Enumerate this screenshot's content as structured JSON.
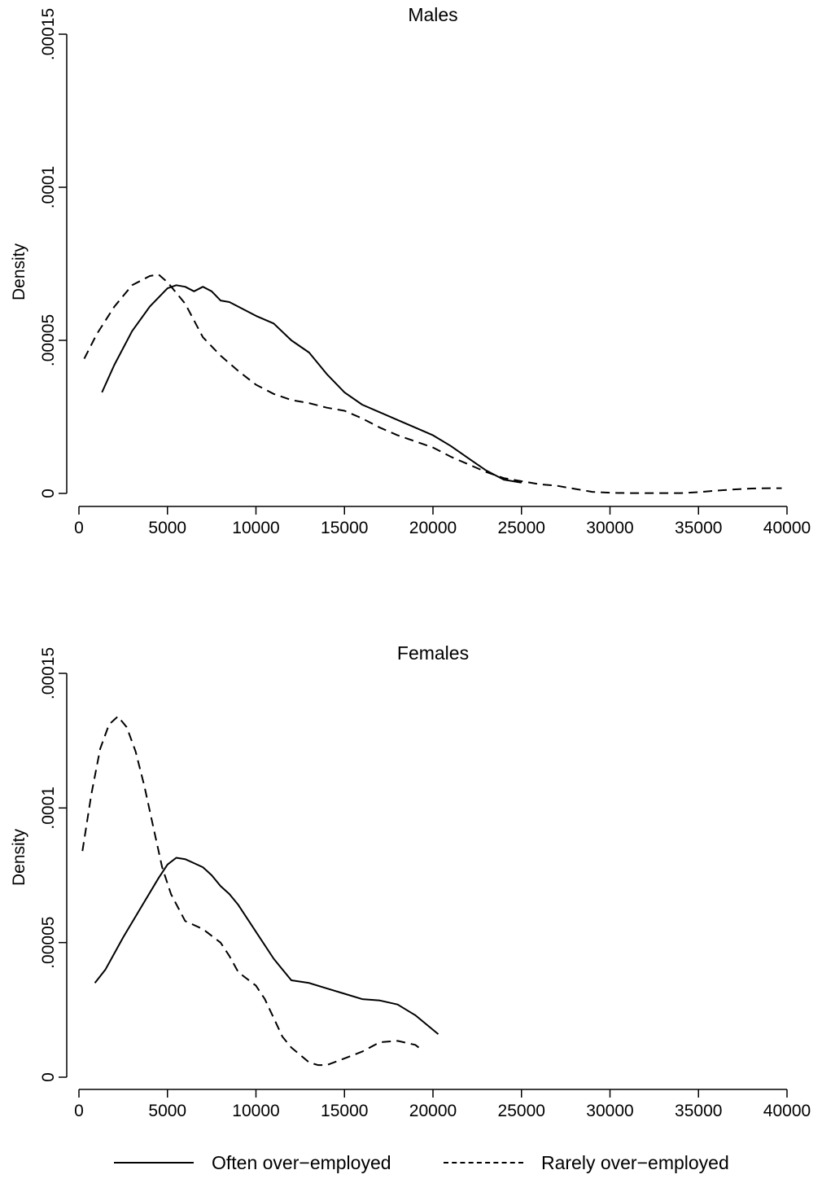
{
  "chart_data": [
    {
      "type": "line",
      "title": "Males",
      "xlabel": "",
      "ylabel": "Density",
      "xlim": [
        0,
        40000
      ],
      "ylim": [
        0,
        0.00015
      ],
      "x_ticks": [
        "0",
        "5000",
        "10000",
        "15000",
        "20000",
        "25000",
        "30000",
        "35000",
        "40000"
      ],
      "y_ticks": [
        "0",
        ".00005",
        ".0001",
        ".00015"
      ],
      "grid": false,
      "series": [
        {
          "name": "Often over-employed",
          "style": "solid",
          "x": [
            1300,
            2000,
            3000,
            4000,
            5000,
            5500,
            6000,
            6500,
            7000,
            7500,
            8000,
            8500,
            9000,
            10000,
            11000,
            12000,
            13000,
            14000,
            15000,
            16000,
            17000,
            18000,
            19000,
            20000,
            21000,
            22000,
            23000,
            24000,
            25000
          ],
          "y": [
            3.3e-05,
            4.2e-05,
            5.3e-05,
            6.1e-05,
            6.7e-05,
            6.8e-05,
            6.75e-05,
            6.6e-05,
            6.75e-05,
            6.6e-05,
            6.3e-05,
            6.25e-05,
            6.1e-05,
            5.8e-05,
            5.55e-05,
            5e-05,
            4.6e-05,
            3.9e-05,
            3.3e-05,
            2.9e-05,
            2.65e-05,
            2.4e-05,
            2.15e-05,
            1.9e-05,
            1.55e-05,
            1.15e-05,
            7.5e-06,
            4.5e-06,
            3.5e-06
          ]
        },
        {
          "name": "Rarely over-employed",
          "style": "dashed",
          "x": [
            300,
            1000,
            2000,
            3000,
            4000,
            4500,
            5000,
            6000,
            7000,
            8000,
            9000,
            10000,
            11000,
            12000,
            13000,
            14000,
            15000,
            16000,
            17000,
            18000,
            19000,
            20000,
            21000,
            22000,
            23000,
            24000,
            25000,
            26000,
            27000,
            28000,
            29000,
            30000,
            31000,
            32000,
            33000,
            34000,
            35000,
            36000,
            37000,
            38000,
            39000,
            39700
          ],
          "y": [
            4.4e-05,
            5.2e-05,
            6.1e-05,
            6.8e-05,
            7.1e-05,
            7.15e-05,
            6.9e-05,
            6.2e-05,
            5.1e-05,
            4.5e-05,
            4e-05,
            3.55e-05,
            3.25e-05,
            3.05e-05,
            2.95e-05,
            2.8e-05,
            2.7e-05,
            2.45e-05,
            2.15e-05,
            1.9e-05,
            1.7e-05,
            1.5e-05,
            1.2e-05,
            9.5e-06,
            7e-06,
            5e-06,
            4e-06,
            3e-06,
            2.5e-06,
            1.5e-06,
            5e-07,
            2e-07,
            1e-07,
            1e-07,
            1e-07,
            1e-07,
            4e-07,
            9e-07,
            1.3e-06,
            1.6e-06,
            1.7e-06,
            1.7e-06
          ]
        }
      ]
    },
    {
      "type": "line",
      "title": "Females",
      "xlabel": "",
      "ylabel": "Density",
      "xlim": [
        0,
        40000
      ],
      "ylim": [
        0,
        0.00015
      ],
      "x_ticks": [
        "0",
        "5000",
        "10000",
        "15000",
        "20000",
        "25000",
        "30000",
        "35000",
        "40000"
      ],
      "y_ticks": [
        "0",
        ".00005",
        ".0001",
        ".00015"
      ],
      "grid": false,
      "series": [
        {
          "name": "Often over-employed",
          "style": "solid",
          "x": [
            900,
            1500,
            2500,
            3500,
            4500,
            5000,
            5500,
            6000,
            6500,
            7000,
            7500,
            8000,
            8500,
            9000,
            10000,
            11000,
            11500,
            12000,
            13000,
            14000,
            15000,
            16000,
            17000,
            18000,
            19000,
            20300
          ],
          "y": [
            3.5e-05,
            4e-05,
            5.2e-05,
            6.3e-05,
            7.4e-05,
            7.9e-05,
            8.15e-05,
            8.1e-05,
            7.95e-05,
            7.8e-05,
            7.5e-05,
            7.1e-05,
            6.8e-05,
            6.4e-05,
            5.4e-05,
            4.4e-05,
            4e-05,
            3.6e-05,
            3.5e-05,
            3.3e-05,
            3.1e-05,
            2.9e-05,
            2.85e-05,
            2.7e-05,
            2.3e-05,
            1.6e-05
          ]
        },
        {
          "name": "Rarely over-employed",
          "style": "dashed",
          "x": [
            200,
            700,
            1200,
            1700,
            2200,
            2700,
            3200,
            3700,
            4200,
            4700,
            5200,
            6000,
            7000,
            8000,
            8500,
            9000,
            10000,
            10500,
            11000,
            11500,
            12000,
            13000,
            13500,
            14000,
            15000,
            16000,
            17000,
            18000,
            19000,
            19300
          ],
          "y": [
            8.4e-05,
            0.000105,
            0.000122,
            0.000131,
            0.000134,
            0.00013,
            0.000121,
            0.000108,
            9.3e-05,
            7.8e-05,
            6.8e-05,
            5.8e-05,
            5.5e-05,
            5e-05,
            4.5e-05,
            3.9e-05,
            3.4e-05,
            2.9e-05,
            2.2e-05,
            1.5e-05,
            1.1e-05,
            5.5e-06,
            4.5e-06,
            4.5e-06,
            7e-06,
            9.5e-06,
            1.3e-05,
            1.35e-05,
            1.2e-05,
            1.05e-05
          ]
        }
      ]
    }
  ],
  "legend": {
    "placement": "bottom",
    "items": [
      {
        "label": "Often over−employed",
        "style": "solid"
      },
      {
        "label": "Rarely over−employed",
        "style": "dashed"
      }
    ]
  }
}
